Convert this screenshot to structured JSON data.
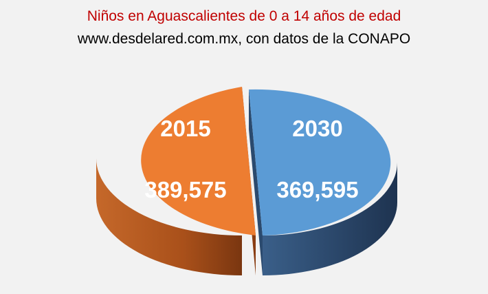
{
  "title": "Niños en Aguascalientes de 0 a 14 años de edad",
  "subtitle": "www.desdelared.com.mx, con datos de la CONAPO",
  "colors": {
    "title": "#c00000",
    "background": "#f2f2f2"
  },
  "chart_data": {
    "type": "pie",
    "style": "3d-exploded",
    "title": "Niños en Aguascalientes de 0 a 14 años de edad",
    "subtitle": "www.desdelared.com.mx, con datos de la CONAPO",
    "legend": "none",
    "slices": [
      {
        "label": "2015",
        "value": 389575,
        "value_label": "389,575",
        "color": "#ed7d31",
        "side_color": "#a9501a"
      },
      {
        "label": "2030",
        "value": 369595,
        "value_label": "369,595",
        "color": "#5b9bd5",
        "side_color": "#2b4a6e"
      }
    ]
  }
}
